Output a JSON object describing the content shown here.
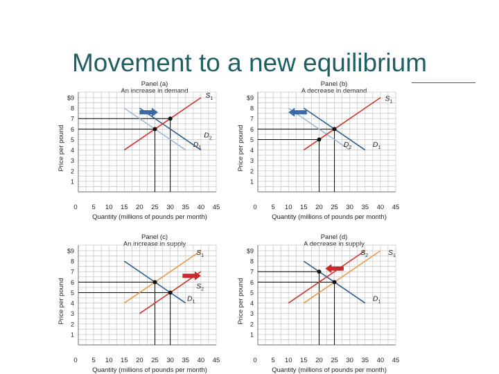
{
  "slide": {
    "title": "Movement to a new equilibrium",
    "accent_color": "#1f5f64"
  },
  "colors": {
    "grid": "#c8c8c8",
    "axis": "#888888",
    "demand": "#2f5c8a",
    "demand_light": "#9fb7d1",
    "supply": "#d2312f",
    "supply_orange": "#ec9a43",
    "arrow_blue": "#3c6aa6",
    "arrow_red": "#c62a2a",
    "guide": "#000000"
  },
  "chart_data": [
    {
      "type": "line",
      "panel": "Panel (a)",
      "subtitle": "An increase in demand",
      "xlabel": "Quantity (millions of pounds per month)",
      "ylabel": "Price per pound",
      "xlim": [
        0,
        45
      ],
      "ylim": [
        0,
        9
      ],
      "x_ticks": [
        "0",
        "5",
        "10",
        "15",
        "20",
        "25",
        "30",
        "35",
        "40",
        "45"
      ],
      "y_ticks": [
        "",
        "1",
        "2",
        "3",
        "4",
        "5",
        "6",
        "7",
        "8",
        "$9"
      ],
      "grid": true,
      "series": [
        {
          "name": "D1",
          "label_main": "D",
          "label_sub": "1",
          "color": "demand_light",
          "points": [
            [
              15,
              8
            ],
            [
              35,
              4
            ]
          ],
          "label_at": [
            37.5,
            4.3
          ]
        },
        {
          "name": "D2",
          "label_main": "D",
          "label_sub": "2",
          "color": "demand",
          "points": [
            [
              20,
              8
            ],
            [
              40,
              4
            ]
          ],
          "label_at": [
            41,
            5.2
          ]
        },
        {
          "name": "S1",
          "label_main": "S",
          "label_sub": "1",
          "color": "supply",
          "points": [
            [
              15,
              4
            ],
            [
              40,
              9
            ]
          ],
          "label_at": [
            41.5,
            9
          ]
        }
      ],
      "equilibria": [
        [
          25,
          6
        ],
        [
          30,
          7
        ]
      ],
      "arrow": {
        "from": [
          20,
          7.6
        ],
        "to": [
          26,
          7.6
        ],
        "color": "arrow_blue"
      }
    },
    {
      "type": "line",
      "panel": "Panel (b)",
      "subtitle": "A decrease in demand",
      "xlabel": "Quantity (millions of pounds per month)",
      "ylabel": "Price per pound",
      "xlim": [
        0,
        45
      ],
      "ylim": [
        0,
        9
      ],
      "x_ticks": [
        "0",
        "5",
        "10",
        "15",
        "20",
        "25",
        "30",
        "35",
        "40",
        "45"
      ],
      "y_ticks": [
        "",
        "1",
        "2",
        "3",
        "4",
        "5",
        "6",
        "7",
        "8",
        "$9"
      ],
      "grid": true,
      "series": [
        {
          "name": "D1",
          "label_main": "D",
          "label_sub": "1",
          "color": "demand",
          "points": [
            [
              15,
              8
            ],
            [
              35,
              4
            ]
          ],
          "label_at": [
            37.5,
            4.3
          ]
        },
        {
          "name": "D2",
          "label_main": "D",
          "label_sub": "2",
          "color": "demand_light",
          "points": [
            [
              10,
              8
            ],
            [
              30,
              4
            ]
          ],
          "label_at": [
            28,
            4.3
          ]
        },
        {
          "name": "S1",
          "label_main": "S",
          "label_sub": "1",
          "color": "supply",
          "points": [
            [
              15,
              4
            ],
            [
              40,
              9
            ]
          ],
          "label_at": [
            41.5,
            8.7
          ]
        }
      ],
      "equilibria": [
        [
          20,
          5
        ],
        [
          25,
          6
        ]
      ],
      "arrow": {
        "from": [
          16,
          7.6
        ],
        "to": [
          10,
          7.6
        ],
        "color": "arrow_blue"
      }
    },
    {
      "type": "line",
      "panel": "Panel (c)",
      "subtitle": "An increase in supply",
      "xlabel": "Quantity (millions of pounds per month)",
      "ylabel": "Price per pound",
      "xlim": [
        0,
        45
      ],
      "ylim": [
        0,
        9
      ],
      "x_ticks": [
        "0",
        "5",
        "10",
        "15",
        "20",
        "25",
        "30",
        "35",
        "40",
        "45"
      ],
      "y_ticks": [
        "",
        "1",
        "2",
        "3",
        "4",
        "5",
        "6",
        "7",
        "8",
        "$9"
      ],
      "grid": true,
      "series": [
        {
          "name": "D1",
          "label_main": "D",
          "label_sub": "1",
          "color": "demand",
          "points": [
            [
              15,
              8
            ],
            [
              35,
              4
            ]
          ],
          "label_at": [
            35.5,
            4.2
          ]
        },
        {
          "name": "S1",
          "label_main": "S",
          "label_sub": "1",
          "color": "supply_orange",
          "points": [
            [
              15,
              4
            ],
            [
              40,
              9
            ]
          ],
          "label_at": [
            38.5,
            8.6
          ]
        },
        {
          "name": "S2",
          "label_main": "S",
          "label_sub": "2",
          "color": "supply",
          "points": [
            [
              20,
              3
            ],
            [
              40,
              7
            ]
          ],
          "label_at": [
            38.5,
            5.4
          ]
        }
      ],
      "equilibria": [
        [
          25,
          6
        ],
        [
          30,
          5
        ]
      ],
      "arrow": {
        "from": [
          34,
          6.6
        ],
        "to": [
          40,
          6.6
        ],
        "color": "arrow_red"
      }
    },
    {
      "type": "line",
      "panel": "Panel (d)",
      "subtitle": "A decrease in supply",
      "xlabel": "Quantity (millions of pounds per month)",
      "ylabel": "Price per pound",
      "xlim": [
        0,
        45
      ],
      "ylim": [
        0,
        9
      ],
      "x_ticks": [
        "0",
        "5",
        "10",
        "15",
        "20",
        "25",
        "30",
        "35",
        "40",
        "45"
      ],
      "y_ticks": [
        "",
        "1",
        "2",
        "3",
        "4",
        "5",
        "6",
        "7",
        "8",
        "$9"
      ],
      "grid": true,
      "series": [
        {
          "name": "D1",
          "label_main": "D",
          "label_sub": "1",
          "color": "demand",
          "points": [
            [
              15,
              8
            ],
            [
              35,
              4
            ]
          ],
          "label_at": [
            37.5,
            4.2
          ]
        },
        {
          "name": "S1",
          "label_main": "S",
          "label_sub": "1",
          "color": "supply_orange",
          "points": [
            [
              15,
              4
            ],
            [
              40,
              9
            ]
          ],
          "label_at": [
            42.5,
            8.6
          ]
        },
        {
          "name": "S2",
          "label_main": "S",
          "label_sub": "2",
          "color": "supply",
          "points": [
            [
              10,
              4
            ],
            [
              35,
              9
            ]
          ],
          "label_at": [
            33.5,
            8.6
          ]
        }
      ],
      "equilibria": [
        [
          20,
          7
        ],
        [
          25,
          6
        ]
      ],
      "arrow": {
        "from": [
          28,
          7.3
        ],
        "to": [
          22,
          7.3
        ],
        "color": "arrow_red"
      }
    }
  ]
}
